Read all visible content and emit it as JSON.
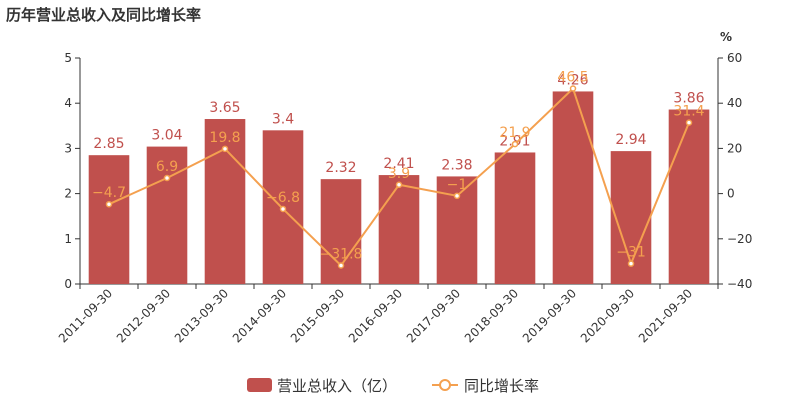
{
  "title": "历年营业总收入及同比增长率",
  "chart_data": {
    "type": "bar",
    "categories": [
      "2011-09-30",
      "2012-09-30",
      "2013-09-30",
      "2014-09-30",
      "2015-09-30",
      "2016-09-30",
      "2017-09-30",
      "2018-09-30",
      "2019-09-30",
      "2020-09-30",
      "2021-09-30"
    ],
    "series": [
      {
        "name": "营业总收入（亿）",
        "type": "bar",
        "axis": "left",
        "values": [
          2.85,
          3.04,
          3.65,
          3.4,
          2.32,
          2.41,
          2.38,
          2.91,
          4.26,
          2.94,
          3.86
        ],
        "labels": [
          "2.85",
          "3.04",
          "3.65",
          "3.4",
          "2.32",
          "2.41",
          "2.38",
          "2.91",
          "4.26",
          "2.94",
          "3.86"
        ]
      },
      {
        "name": "同比增长率",
        "type": "line",
        "axis": "right",
        "values": [
          -4.7,
          6.9,
          19.8,
          -6.8,
          -31.8,
          3.9,
          -1,
          21.9,
          46.5,
          -31,
          31.4
        ],
        "labels": [
          "−4.7",
          "6.9",
          "19.8",
          "−6.8",
          "−31.8",
          "3.9",
          "−1",
          "21.9",
          "46.5",
          "−31",
          "31.4"
        ]
      }
    ],
    "y_left": {
      "ylim": [
        0,
        5
      ],
      "ticks": [
        "0",
        "1",
        "2",
        "3",
        "4",
        "5"
      ]
    },
    "y_right": {
      "label": "%",
      "ylim": [
        -40,
        60
      ],
      "ticks": [
        "−40",
        "−20",
        "0",
        "20",
        "40",
        "60"
      ]
    },
    "legend_position": "bottom",
    "colors": {
      "bar": "#c0504d",
      "line": "#f4a04f"
    }
  }
}
